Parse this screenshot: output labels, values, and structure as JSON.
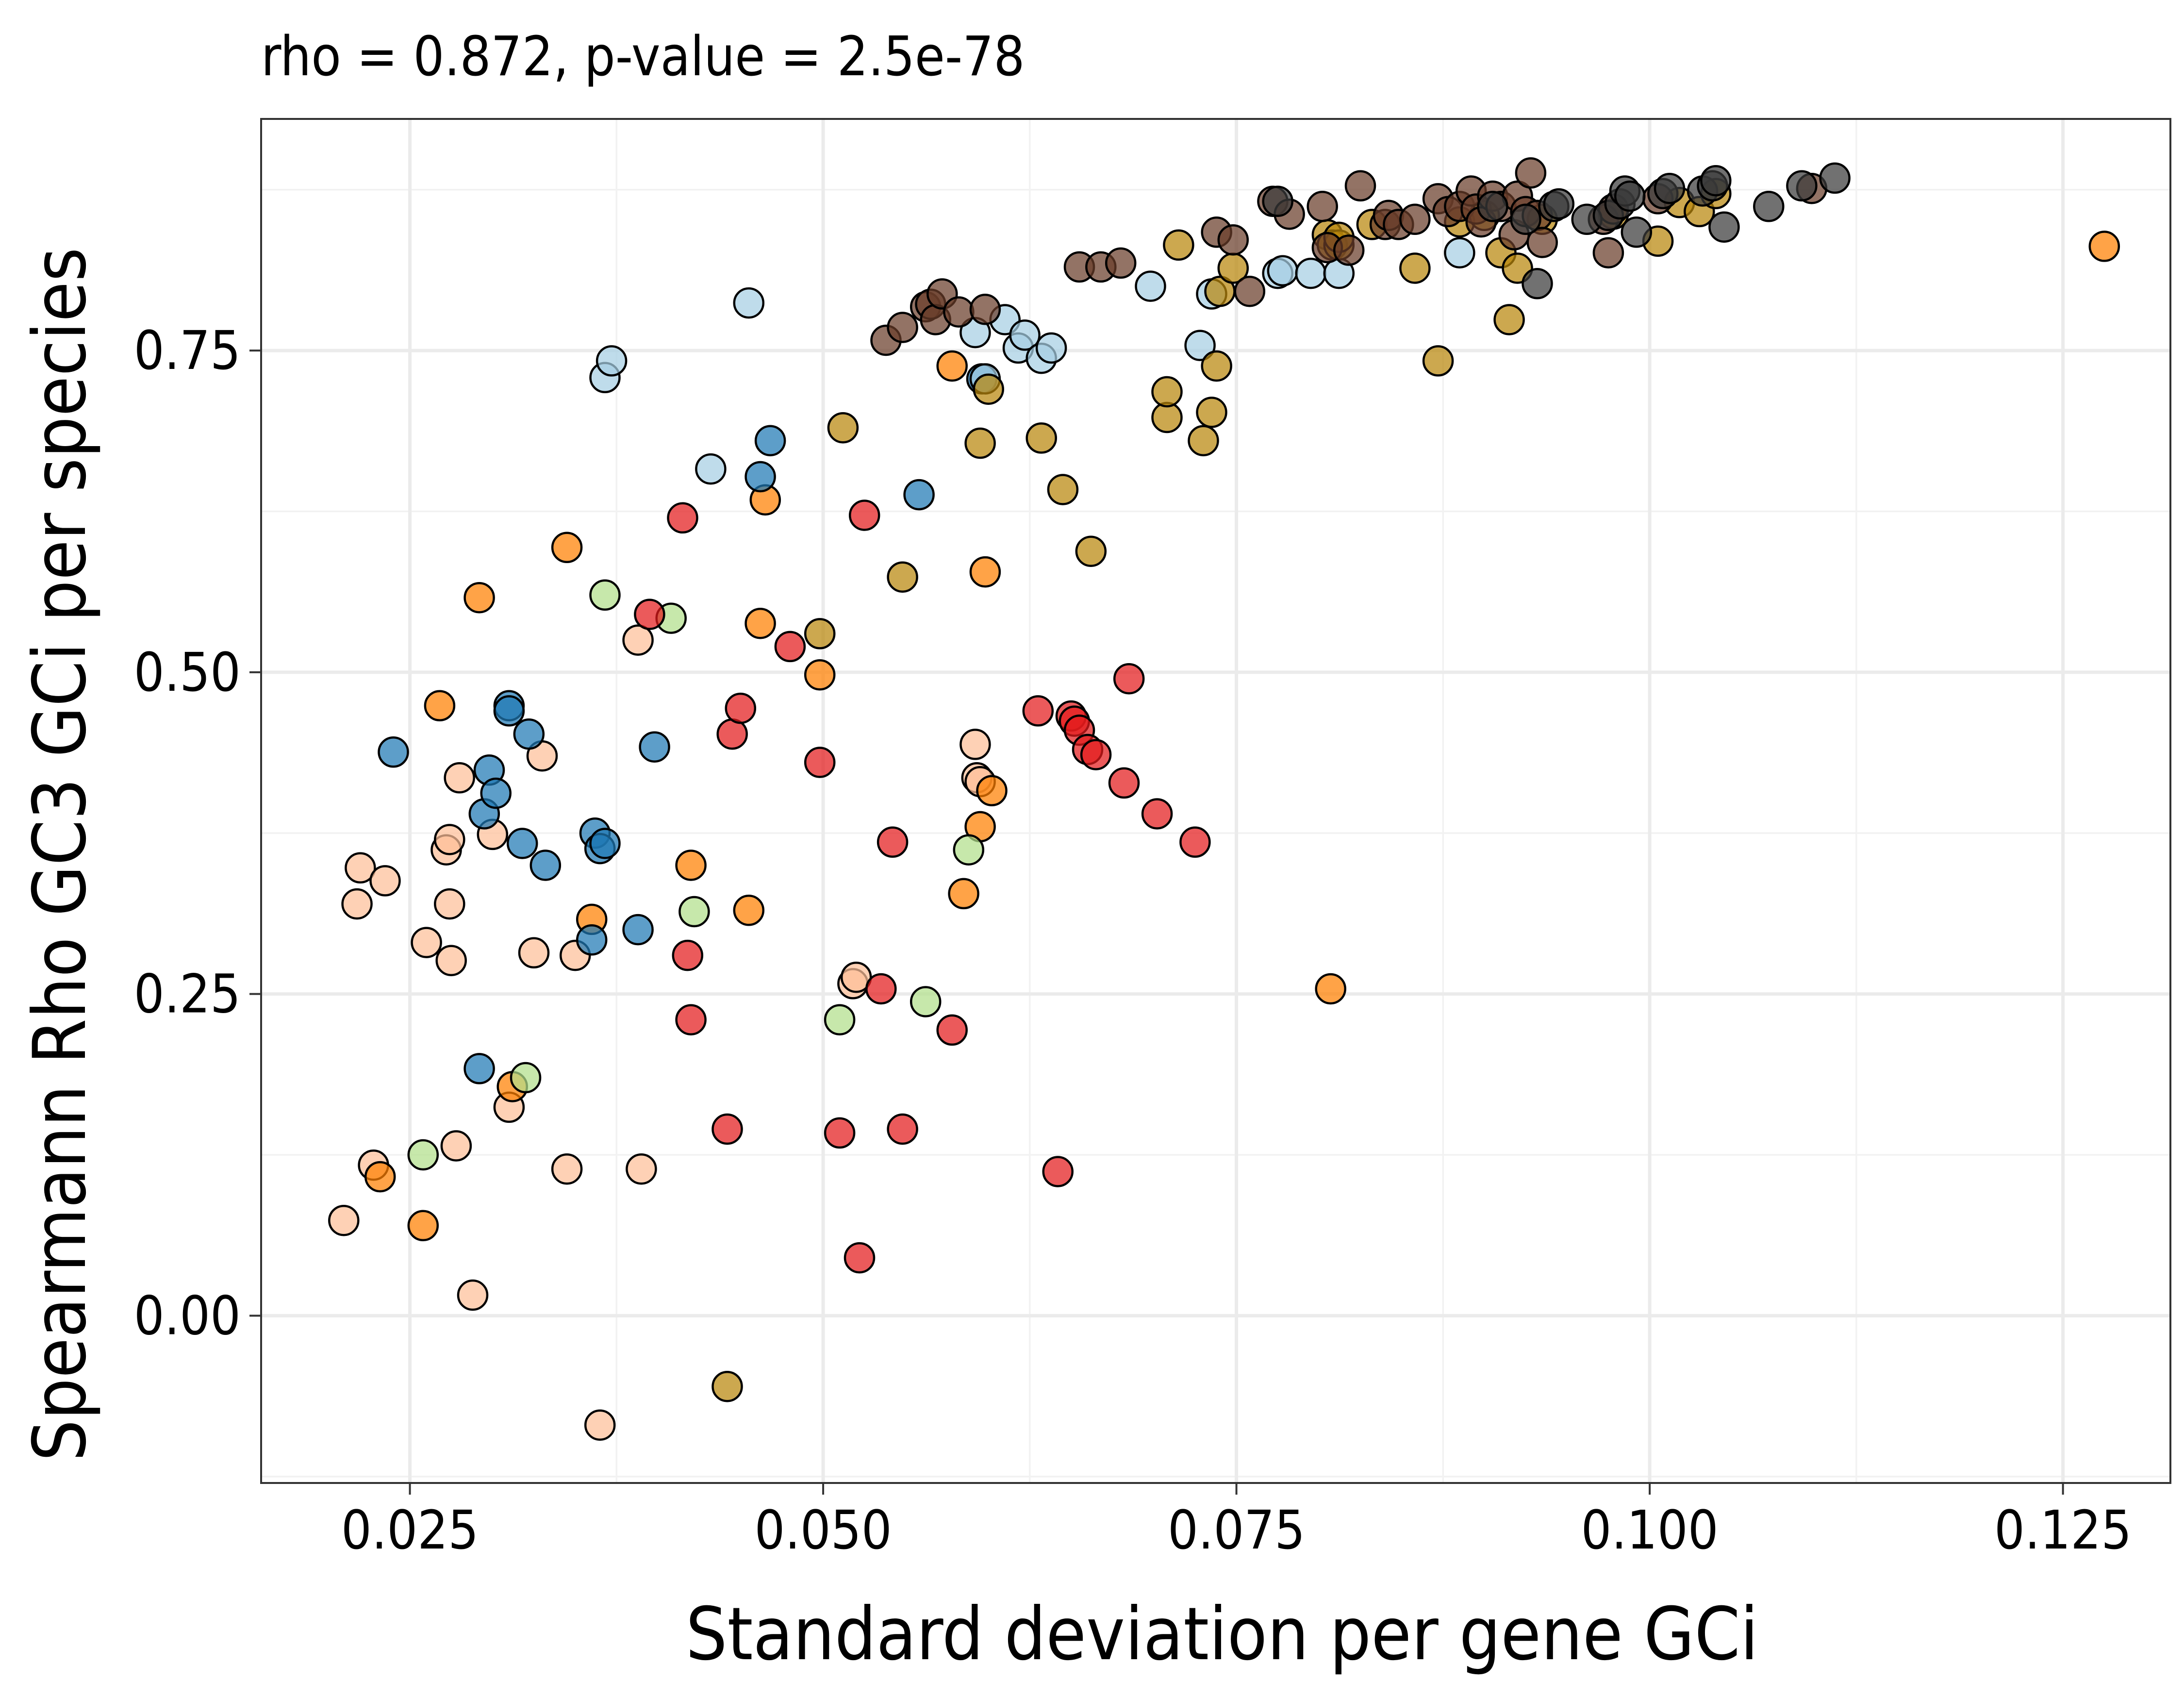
{
  "chart_data": {
    "type": "scatter",
    "title": "rho = 0.872, p-value = 2.5e-78",
    "xlabel": "Standard deviation per gene GCi",
    "ylabel": "Spearmann Rho GC3 GCi per species",
    "xlim": [
      0.016,
      0.1315
    ],
    "ylim": [
      -0.13,
      0.93
    ],
    "x_ticks": [
      0.025,
      0.05,
      0.075,
      0.1,
      0.125
    ],
    "x_tick_labels": [
      "0.025",
      "0.050",
      "0.075",
      "0.100",
      "0.125"
    ],
    "y_ticks": [
      0.0,
      0.25,
      0.5,
      0.75
    ],
    "y_tick_labels": [
      "0.00",
      "0.25",
      "0.50",
      "0.75"
    ],
    "grid": true,
    "legend": "none",
    "series": [
      {
        "color": "#fdbf99",
        "points": [
          [
            0.021,
            0.074
          ],
          [
            0.0218,
            0.32
          ],
          [
            0.022,
            0.348
          ],
          [
            0.0228,
            0.117
          ],
          [
            0.0235,
            0.338
          ],
          [
            0.026,
            0.29
          ],
          [
            0.0272,
            0.362
          ],
          [
            0.0274,
            0.37
          ],
          [
            0.0274,
            0.32
          ],
          [
            0.0275,
            0.276
          ],
          [
            0.0278,
            0.132
          ],
          [
            0.028,
            0.418
          ],
          [
            0.0288,
            0.016
          ],
          [
            0.03,
            0.374
          ],
          [
            0.031,
            0.162
          ],
          [
            0.0325,
            0.282
          ],
          [
            0.033,
            0.435
          ],
          [
            0.0345,
            0.114
          ],
          [
            0.035,
            0.28
          ],
          [
            0.0365,
            -0.085
          ],
          [
            0.0388,
            0.525
          ],
          [
            0.039,
            0.114
          ],
          [
            0.0518,
            0.258
          ],
          [
            0.052,
            0.263
          ],
          [
            0.0592,
            0.444
          ],
          [
            0.0593,
            0.418
          ],
          [
            0.0595,
            0.415
          ]
        ]
      },
      {
        "color": "#ff7f00",
        "points": [
          [
            0.0232,
            0.108
          ],
          [
            0.0258,
            0.07
          ],
          [
            0.0268,
            0.474
          ],
          [
            0.0292,
            0.558
          ],
          [
            0.0312,
            0.178
          ],
          [
            0.0345,
            0.597
          ],
          [
            0.036,
            0.308
          ],
          [
            0.042,
            0.35
          ],
          [
            0.0455,
            0.315
          ],
          [
            0.0462,
            0.538
          ],
          [
            0.0465,
            0.634
          ],
          [
            0.0498,
            0.498
          ],
          [
            0.0578,
            0.738
          ],
          [
            0.0585,
            0.328
          ],
          [
            0.0595,
            0.38
          ],
          [
            0.0598,
            0.578
          ],
          [
            0.0602,
            0.408
          ],
          [
            0.0807,
            0.254
          ],
          [
            0.1275,
            0.831
          ]
        ]
      },
      {
        "color": "#1f78b4",
        "points": [
          [
            0.024,
            0.438
          ],
          [
            0.0292,
            0.192
          ],
          [
            0.0295,
            0.39
          ],
          [
            0.0298,
            0.424
          ],
          [
            0.0302,
            0.406
          ],
          [
            0.031,
            0.474
          ],
          [
            0.031,
            0.47
          ],
          [
            0.0318,
            0.367
          ],
          [
            0.0322,
            0.452
          ],
          [
            0.0332,
            0.35
          ],
          [
            0.036,
            0.292
          ],
          [
            0.0362,
            0.375
          ],
          [
            0.0365,
            0.363
          ],
          [
            0.0368,
            0.367
          ],
          [
            0.0388,
            0.3
          ],
          [
            0.0398,
            0.442
          ],
          [
            0.0462,
            0.652
          ],
          [
            0.0468,
            0.68
          ],
          [
            0.0558,
            0.638
          ],
          [
            0.0596,
            0.728
          ]
        ]
      },
      {
        "color": "#b2df8a",
        "points": [
          [
            0.0258,
            0.125
          ],
          [
            0.032,
            0.185
          ],
          [
            0.0368,
            0.56
          ],
          [
            0.0408,
            0.542
          ],
          [
            0.0422,
            0.314
          ],
          [
            0.051,
            0.23
          ],
          [
            0.0562,
            0.244
          ],
          [
            0.0588,
            0.362
          ]
        ]
      },
      {
        "color": "#a6cee3",
        "points": [
          [
            0.0368,
            0.729
          ],
          [
            0.0372,
            0.742
          ],
          [
            0.0432,
            0.658
          ],
          [
            0.0455,
            0.787
          ],
          [
            0.0592,
            0.764
          ],
          [
            0.0598,
            0.728
          ],
          [
            0.061,
            0.774
          ],
          [
            0.0618,
            0.752
          ],
          [
            0.0622,
            0.762
          ],
          [
            0.0632,
            0.744
          ],
          [
            0.0638,
            0.752
          ],
          [
            0.0698,
            0.8
          ],
          [
            0.0728,
            0.754
          ],
          [
            0.0735,
            0.794
          ],
          [
            0.0775,
            0.81
          ],
          [
            0.0778,
            0.812
          ],
          [
            0.0795,
            0.81
          ],
          [
            0.0812,
            0.81
          ],
          [
            0.0885,
            0.826
          ]
        ]
      },
      {
        "color": "#e31a1c",
        "points": [
          [
            0.0395,
            0.545
          ],
          [
            0.0415,
            0.62
          ],
          [
            0.0418,
            0.28
          ],
          [
            0.042,
            0.23
          ],
          [
            0.0442,
            0.145
          ],
          [
            0.0445,
            0.452
          ],
          [
            0.045,
            0.472
          ],
          [
            0.048,
            0.52
          ],
          [
            0.0498,
            0.43
          ],
          [
            0.051,
            0.142
          ],
          [
            0.0522,
            0.045
          ],
          [
            0.0525,
            0.622
          ],
          [
            0.0535,
            0.254
          ],
          [
            0.0542,
            0.368
          ],
          [
            0.0548,
            0.145
          ],
          [
            0.0578,
            0.222
          ],
          [
            0.063,
            0.47
          ],
          [
            0.0642,
            0.112
          ],
          [
            0.065,
            0.466
          ],
          [
            0.0652,
            0.462
          ],
          [
            0.0655,
            0.455
          ],
          [
            0.066,
            0.44
          ],
          [
            0.0665,
            0.436
          ],
          [
            0.0682,
            0.414
          ],
          [
            0.0685,
            0.495
          ],
          [
            0.0702,
            0.39
          ],
          [
            0.0725,
            0.368
          ]
        ]
      },
      {
        "color": "#b8860b",
        "points": [
          [
            0.0442,
            -0.055
          ],
          [
            0.0498,
            0.53
          ],
          [
            0.0512,
            0.69
          ],
          [
            0.0548,
            0.574
          ],
          [
            0.0595,
            0.678
          ],
          [
            0.06,
            0.72
          ],
          [
            0.0632,
            0.682
          ],
          [
            0.0645,
            0.642
          ],
          [
            0.0662,
            0.594
          ],
          [
            0.0708,
            0.698
          ],
          [
            0.0708,
            0.718
          ],
          [
            0.0715,
            0.832
          ],
          [
            0.073,
            0.68
          ],
          [
            0.0735,
            0.702
          ],
          [
            0.0738,
            0.738
          ],
          [
            0.074,
            0.796
          ],
          [
            0.0748,
            0.814
          ],
          [
            0.0805,
            0.84
          ],
          [
            0.0808,
            0.832
          ],
          [
            0.0812,
            0.832
          ],
          [
            0.0812,
            0.838
          ],
          [
            0.0832,
            0.848
          ],
          [
            0.0858,
            0.814
          ],
          [
            0.0872,
            0.742
          ],
          [
            0.0885,
            0.85
          ],
          [
            0.09,
            0.855
          ],
          [
            0.091,
            0.826
          ],
          [
            0.0915,
            0.774
          ],
          [
            0.092,
            0.814
          ],
          [
            0.0935,
            0.852
          ],
          [
            0.0978,
            0.856
          ],
          [
            0.1005,
            0.835
          ],
          [
            0.1018,
            0.865
          ],
          [
            0.103,
            0.858
          ],
          [
            0.104,
            0.872
          ]
        ]
      },
      {
        "color": "#6a3d2a",
        "points": [
          [
            0.0538,
            0.758
          ],
          [
            0.0548,
            0.768
          ],
          [
            0.0562,
            0.784
          ],
          [
            0.0565,
            0.786
          ],
          [
            0.0568,
            0.774
          ],
          [
            0.0572,
            0.794
          ],
          [
            0.0582,
            0.78
          ],
          [
            0.0598,
            0.782
          ],
          [
            0.0655,
            0.815
          ],
          [
            0.0668,
            0.815
          ],
          [
            0.068,
            0.818
          ],
          [
            0.0738,
            0.842
          ],
          [
            0.0748,
            0.836
          ],
          [
            0.0758,
            0.796
          ],
          [
            0.0772,
            0.866
          ],
          [
            0.0782,
            0.856
          ],
          [
            0.0802,
            0.862
          ],
          [
            0.0805,
            0.83
          ],
          [
            0.0818,
            0.828
          ],
          [
            0.0825,
            0.878
          ],
          [
            0.084,
            0.848
          ],
          [
            0.0842,
            0.855
          ],
          [
            0.0848,
            0.848
          ],
          [
            0.0858,
            0.852
          ],
          [
            0.0872,
            0.868
          ],
          [
            0.0878,
            0.858
          ],
          [
            0.0885,
            0.862
          ],
          [
            0.0892,
            0.874
          ],
          [
            0.0895,
            0.86
          ],
          [
            0.0898,
            0.85
          ],
          [
            0.0905,
            0.87
          ],
          [
            0.091,
            0.862
          ],
          [
            0.0918,
            0.84
          ],
          [
            0.092,
            0.87
          ],
          [
            0.0925,
            0.858
          ],
          [
            0.0928,
            0.888
          ],
          [
            0.0932,
            0.855
          ],
          [
            0.0935,
            0.834
          ],
          [
            0.0972,
            0.852
          ],
          [
            0.0975,
            0.826
          ],
          [
            0.0978,
            0.86
          ],
          [
            0.1005,
            0.868
          ],
          [
            0.1098,
            0.876
          ]
        ]
      },
      {
        "color": "#3a3a3a",
        "points": [
          [
            0.0775,
            0.866
          ],
          [
            0.0905,
            0.862
          ],
          [
            0.0925,
            0.852
          ],
          [
            0.0932,
            0.802
          ],
          [
            0.0942,
            0.862
          ],
          [
            0.0945,
            0.864
          ],
          [
            0.0962,
            0.852
          ],
          [
            0.0975,
            0.855
          ],
          [
            0.0982,
            0.864
          ],
          [
            0.0985,
            0.874
          ],
          [
            0.0988,
            0.87
          ],
          [
            0.0992,
            0.842
          ],
          [
            0.1008,
            0.872
          ],
          [
            0.1012,
            0.876
          ],
          [
            0.1032,
            0.874
          ],
          [
            0.1038,
            0.878
          ],
          [
            0.104,
            0.882
          ],
          [
            0.1045,
            0.846
          ],
          [
            0.1072,
            0.862
          ],
          [
            0.1092,
            0.878
          ],
          [
            0.1112,
            0.884
          ]
        ]
      }
    ]
  }
}
